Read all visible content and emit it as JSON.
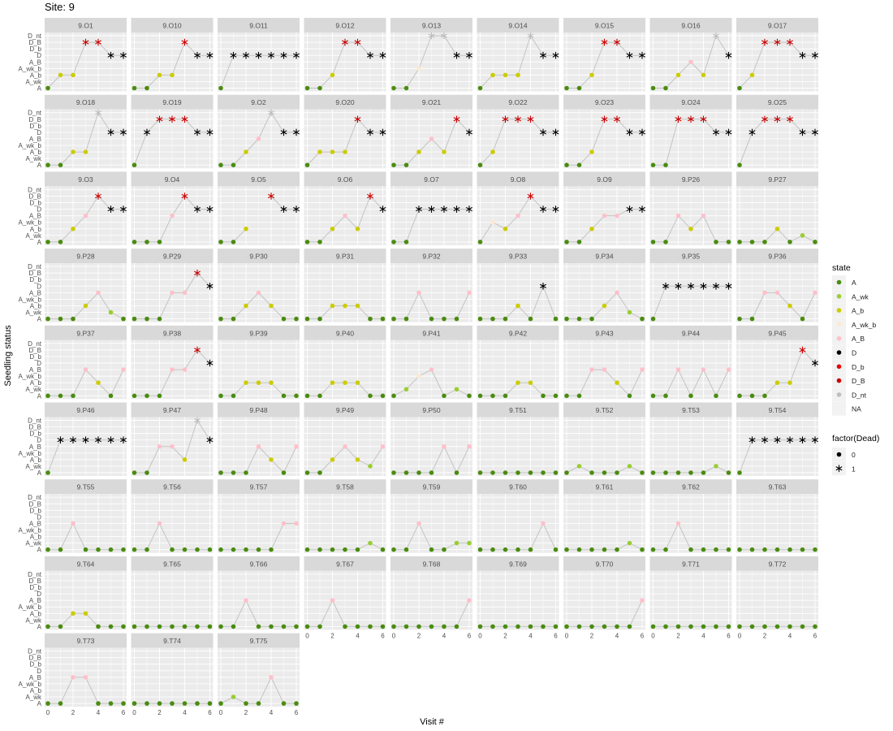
{
  "title": "Site:  9",
  "xlabel": "Visit #",
  "ylabel": "Seedling status",
  "legend_state": {
    "title": "state",
    "entries": [
      {
        "label": "A",
        "color": "#4a8c0f"
      },
      {
        "label": "A_wk",
        "color": "#9acd32"
      },
      {
        "label": "A_b",
        "color": "#cccc00"
      },
      {
        "label": "A_wk_b",
        "color": "#fde9d2"
      },
      {
        "label": "A_B",
        "color": "#ffc0cb"
      },
      {
        "label": "D",
        "color": "#000000"
      },
      {
        "label": "D_b",
        "color": "#e60000"
      },
      {
        "label": "D_B",
        "color": "#cc0000"
      },
      {
        "label": "D_nt",
        "color": "#bebebe"
      },
      {
        "label": "NA",
        "color": ""
      }
    ]
  },
  "legend_dead": {
    "title": "factor(Dead)",
    "entries": [
      {
        "label": "0",
        "shape": "dot"
      },
      {
        "label": "1",
        "shape": "star"
      }
    ]
  },
  "chart_data": {
    "type": "scatter",
    "facets_by": "seedling id",
    "y_levels": [
      "A",
      "A_wk",
      "A_b",
      "A_wk_b",
      "A_B",
      "D",
      "D_b",
      "D_B",
      "D_nt"
    ],
    "x_ticks": [
      0,
      2,
      4,
      6
    ],
    "xlim": [
      0,
      6
    ],
    "panels": [
      {
        "name": "9.O1",
        "states": [
          "A",
          "A_b",
          "A_b",
          "D_B",
          "D_B",
          "D",
          "D"
        ]
      },
      {
        "name": "9.O10",
        "states": [
          "A",
          "A",
          "A_b",
          "A_b",
          "D_B",
          "D",
          "D"
        ]
      },
      {
        "name": "9.O11",
        "states": [
          "A",
          "D",
          "D",
          "D",
          "D",
          "D",
          "D"
        ]
      },
      {
        "name": "9.O12",
        "states": [
          "A",
          "A",
          "A_b",
          "D_B",
          "D_B",
          "D",
          "D"
        ]
      },
      {
        "name": "9.O13",
        "states": [
          "A",
          "A",
          "A_wk_b",
          "D_nt",
          "D_nt",
          "D",
          "D"
        ]
      },
      {
        "name": "9.O14",
        "states": [
          "A",
          "A_b",
          "A_b",
          "A_b",
          "D_nt",
          "D",
          "D"
        ]
      },
      {
        "name": "9.O15",
        "states": [
          "A",
          "A",
          "A_b",
          "D_B",
          "D_B",
          "D",
          "D"
        ]
      },
      {
        "name": "9.O16",
        "states": [
          "A",
          "A",
          "A_b",
          "A_B",
          "A_b",
          "D_nt",
          "D"
        ]
      },
      {
        "name": "9.O17",
        "states": [
          "A",
          "A_b",
          "D_B",
          "D_B",
          "D_B",
          "D",
          "D"
        ]
      },
      {
        "name": "9.O18",
        "states": [
          "A",
          "A",
          "A_b",
          "A_b",
          "D_nt",
          "D",
          "D"
        ]
      },
      {
        "name": "9.O19",
        "states": [
          "A",
          "D",
          "D_B",
          "D_B",
          "D_B",
          "D",
          "D"
        ]
      },
      {
        "name": "9.O2",
        "states": [
          "A",
          "A",
          "A_b",
          "A_B",
          "D_nt",
          "D",
          "D"
        ]
      },
      {
        "name": "9.O20",
        "states": [
          "A",
          "A_b",
          "A_b",
          "A_b",
          "D_B",
          "D",
          "D"
        ]
      },
      {
        "name": "9.O21",
        "states": [
          "A",
          "A",
          "A_b",
          "A_B",
          "A_b",
          "D_B",
          "D"
        ]
      },
      {
        "name": "9.O22",
        "states": [
          "A",
          "A_b",
          "D_B",
          "D_B",
          "D_B",
          "D",
          "D"
        ]
      },
      {
        "name": "9.O23",
        "states": [
          "A",
          "A",
          "A_b",
          "D_B",
          "D_B",
          "D",
          "D"
        ]
      },
      {
        "name": "9.O24",
        "states": [
          "A",
          "A",
          "D_B",
          "D_B",
          "D_B",
          "D",
          "D"
        ]
      },
      {
        "name": "9.O25",
        "states": [
          "A",
          "D",
          "D_B",
          "D_B",
          "D_B",
          "D",
          "D"
        ]
      },
      {
        "name": "9.O3",
        "states": [
          "A",
          "A",
          "A_b",
          "A_B",
          "D_B",
          "D",
          "D"
        ]
      },
      {
        "name": "9.O4",
        "states": [
          "A",
          "A",
          "A",
          "A_B",
          "D_B",
          "D",
          "D"
        ]
      },
      {
        "name": "9.O5",
        "states": [
          "A",
          "A",
          "A_b",
          null,
          "D_B",
          "D",
          "D"
        ]
      },
      {
        "name": "9.O6",
        "states": [
          "A",
          "A",
          "A_b",
          "A_B",
          "A_b",
          "D_B",
          "D"
        ]
      },
      {
        "name": "9.O7",
        "states": [
          "A",
          "A",
          "D",
          "D",
          "D",
          "D",
          "D"
        ]
      },
      {
        "name": "9.O8",
        "states": [
          "A",
          "A_wk_b",
          "A_b",
          "A_B",
          "D_B",
          "D",
          "D"
        ]
      },
      {
        "name": "9.O9",
        "states": [
          "A",
          "A",
          "A_b",
          "A_B",
          "A_B",
          "D",
          "D"
        ]
      },
      {
        "name": "9.P26",
        "states": [
          "A",
          "A",
          "A_B",
          "A_b",
          "A_B",
          "A",
          "A"
        ]
      },
      {
        "name": "9.P27",
        "states": [
          "A",
          "A",
          "A",
          "A_b",
          "A",
          "A_wk",
          "A"
        ]
      },
      {
        "name": "9.P28",
        "states": [
          "A",
          "A",
          "A",
          "A_b",
          "A_B",
          "A_wk",
          "A"
        ]
      },
      {
        "name": "9.P29",
        "states": [
          "A",
          "A",
          "A",
          "A_B",
          "A_B",
          "D_B",
          "D"
        ]
      },
      {
        "name": "9.P30",
        "states": [
          "A",
          "A",
          "A_b",
          "A_B",
          "A_b",
          "A",
          "A"
        ]
      },
      {
        "name": "9.P31",
        "states": [
          "A",
          "A",
          "A_b",
          "A_b",
          "A_b",
          "A",
          "A"
        ]
      },
      {
        "name": "9.P32",
        "states": [
          "A",
          "A",
          "A_B",
          "A",
          "A",
          "A",
          "A_B"
        ]
      },
      {
        "name": "9.P33",
        "states": [
          "A",
          "A",
          "A",
          "A_b",
          "A",
          "D",
          "A"
        ]
      },
      {
        "name": "9.P34",
        "states": [
          "A",
          "A",
          "A",
          "A_b",
          "A_B",
          "A_wk",
          "A"
        ]
      },
      {
        "name": "9.P35",
        "states": [
          "A",
          "D",
          "D",
          "D",
          "D",
          "D",
          "D"
        ]
      },
      {
        "name": "9.P36",
        "states": [
          "A",
          "A",
          "A_B",
          "A_B",
          "A_b",
          "A",
          "A_B"
        ]
      },
      {
        "name": "9.P37",
        "states": [
          "A",
          "A",
          "A",
          "A_B",
          "A_b",
          "A",
          "A_B"
        ]
      },
      {
        "name": "9.P38",
        "states": [
          "A",
          "A",
          "A",
          "A_B",
          "A_B",
          "D_B",
          "D"
        ]
      },
      {
        "name": "9.P39",
        "states": [
          "A",
          "A",
          "A_b",
          "A_b",
          "A_b",
          "A",
          "A"
        ]
      },
      {
        "name": "9.P40",
        "states": [
          "A",
          "A",
          "A_b",
          "A_b",
          "A_b",
          "A",
          "A"
        ]
      },
      {
        "name": "9.P41",
        "states": [
          "A",
          "A_wk",
          "A_wk_b",
          "A_B",
          "A",
          "A_wk",
          "A"
        ]
      },
      {
        "name": "9.P42",
        "states": [
          "A",
          "A",
          "A",
          "A_b",
          "A_b",
          "A",
          "A"
        ]
      },
      {
        "name": "9.P43",
        "states": [
          "A",
          "A",
          "A_B",
          "A_B",
          "A_b",
          "A",
          "A_B"
        ]
      },
      {
        "name": "9.P44",
        "states": [
          "A",
          "A",
          "A_B",
          "A",
          "A_B",
          "A",
          "A_B"
        ]
      },
      {
        "name": "9.P45",
        "states": [
          "A",
          "A",
          "A",
          "A_b",
          "A_b",
          "D_B",
          "D"
        ]
      },
      {
        "name": "9.P46",
        "states": [
          "A",
          "D",
          "D",
          "D",
          "D",
          "D",
          "D"
        ]
      },
      {
        "name": "9.P47",
        "states": [
          "A",
          "A",
          "A_B",
          "A_B",
          "A_b",
          "D_nt",
          "D"
        ]
      },
      {
        "name": "9.P48",
        "states": [
          "A",
          "A",
          "A",
          "A_B",
          "A_b",
          "A",
          "A_B"
        ]
      },
      {
        "name": "9.P49",
        "states": [
          "A",
          "A",
          "A_b",
          "A_B",
          "A_b",
          "A_wk",
          "A_B"
        ]
      },
      {
        "name": "9.P50",
        "states": [
          "A",
          "A",
          "A",
          "A",
          "A_B",
          "A",
          "A_B"
        ]
      },
      {
        "name": "9.T51",
        "states": [
          "A",
          "A",
          "A",
          "A",
          "A",
          "A",
          "A"
        ]
      },
      {
        "name": "9.T52",
        "states": [
          "A",
          "A_wk",
          "A",
          "A",
          "A",
          "A_wk",
          "A"
        ]
      },
      {
        "name": "9.T53",
        "states": [
          "A",
          "A",
          "A",
          "A",
          "A",
          "A_wk",
          "A"
        ]
      },
      {
        "name": "9.T54",
        "states": [
          "A",
          "D",
          "D",
          "D",
          "D",
          "D",
          "D"
        ]
      },
      {
        "name": "9.T55",
        "states": [
          "A",
          "A",
          "A_B",
          "A",
          "A",
          "A",
          "A"
        ]
      },
      {
        "name": "9.T56",
        "states": [
          "A",
          "A",
          "A_B",
          "A",
          "A",
          "A",
          "A"
        ]
      },
      {
        "name": "9.T57",
        "states": [
          "A",
          "A",
          "A",
          "A",
          "A",
          "A_B",
          "A_B"
        ]
      },
      {
        "name": "9.T58",
        "states": [
          "A",
          "A",
          "A",
          "A",
          "A",
          "A_wk",
          "A"
        ]
      },
      {
        "name": "9.T59",
        "states": [
          "A",
          "A",
          "A_B",
          "A",
          "A",
          "A_wk",
          "A_wk"
        ]
      },
      {
        "name": "9.T60",
        "states": [
          "A",
          "A",
          "A",
          "A",
          "A",
          "A_B",
          "A"
        ]
      },
      {
        "name": "9.T61",
        "states": [
          "A",
          "A",
          "A",
          "A",
          "A",
          "A_wk",
          "A"
        ]
      },
      {
        "name": "9.T62",
        "states": [
          "A",
          "A",
          "A_B",
          "A",
          "A",
          "A",
          "A"
        ]
      },
      {
        "name": "9.T63",
        "states": [
          "A",
          "A",
          "A",
          "A",
          "A",
          "A",
          "A"
        ]
      },
      {
        "name": "9.T64",
        "states": [
          "A",
          "A",
          "A_b",
          "A_b",
          "A",
          "A",
          "A"
        ]
      },
      {
        "name": "9.T65",
        "states": [
          "A",
          "A",
          "A",
          "A",
          "A",
          "A",
          "A"
        ]
      },
      {
        "name": "9.T66",
        "states": [
          "A",
          "A",
          "A_B",
          "A",
          "A",
          "A",
          "A"
        ]
      },
      {
        "name": "9.T67",
        "states": [
          "A",
          "A",
          "A_B",
          "A",
          "A",
          "A",
          "A"
        ]
      },
      {
        "name": "9.T68",
        "states": [
          "A",
          "A",
          "A",
          "A",
          "A",
          "A",
          "A_B"
        ]
      },
      {
        "name": "9.T69",
        "states": [
          "A",
          "A",
          "A",
          "A",
          "A",
          "A",
          "A"
        ]
      },
      {
        "name": "9.T70",
        "states": [
          "A",
          "A",
          "A",
          "A",
          "A",
          "A",
          "A_B"
        ]
      },
      {
        "name": "9.T71",
        "states": [
          "A",
          "A",
          "A",
          "A",
          "A",
          "A",
          "A"
        ]
      },
      {
        "name": "9.T72",
        "states": [
          "A",
          "A",
          "A",
          "A",
          "A",
          "A",
          "A"
        ]
      },
      {
        "name": "9.T73",
        "states": [
          "A",
          "A",
          "A_B",
          "A_B",
          "A",
          "A",
          "A"
        ]
      },
      {
        "name": "9.T74",
        "states": [
          "A",
          "A",
          "A",
          "A",
          "A",
          "A",
          "A"
        ]
      },
      {
        "name": "9.T75",
        "states": [
          "A",
          "A_wk",
          "A",
          "A",
          "A_B",
          "A",
          "A"
        ]
      }
    ]
  }
}
